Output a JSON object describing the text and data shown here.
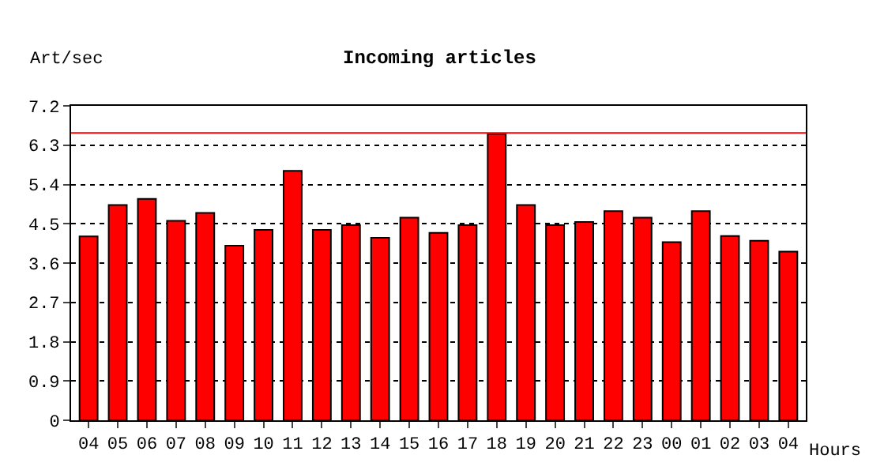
{
  "chart_data": {
    "type": "bar",
    "title": "Incoming articles",
    "ylabel": "Art/sec",
    "xlabel": "Hours",
    "categories": [
      "04",
      "05",
      "06",
      "07",
      "08",
      "09",
      "10",
      "11",
      "12",
      "13",
      "14",
      "15",
      "16",
      "17",
      "18",
      "19",
      "20",
      "21",
      "22",
      "23",
      "00",
      "01",
      "02",
      "03",
      "04"
    ],
    "values": [
      4.21,
      4.93,
      5.07,
      4.57,
      4.75,
      4.0,
      4.36,
      5.71,
      4.36,
      4.47,
      4.18,
      4.64,
      4.29,
      4.47,
      6.56,
      4.93,
      4.47,
      4.54,
      4.79,
      4.64,
      4.08,
      4.79,
      4.22,
      4.11,
      3.86
    ],
    "color": "#ff0000",
    "ylim": [
      0,
      7.2
    ],
    "yticks": [
      0,
      0.9,
      1.8,
      2.7,
      3.6,
      4.5,
      5.4,
      6.3,
      7.2
    ],
    "grid": "y",
    "ref_lines": [
      {
        "axis": "y",
        "value": 6.58,
        "color": "#ff0000"
      }
    ]
  }
}
